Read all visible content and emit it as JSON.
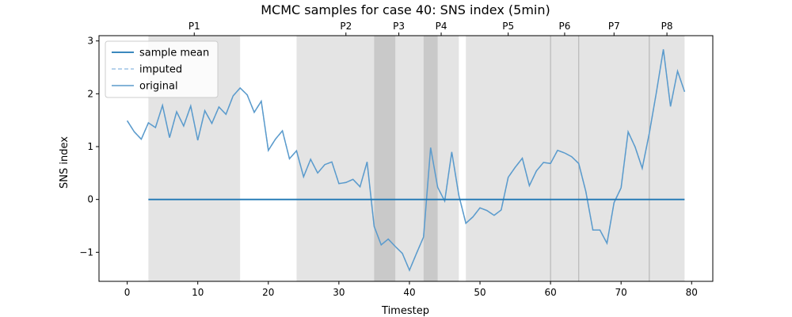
{
  "chart_data": {
    "type": "line",
    "title": "MCMC samples for case 40: SNS index (5min)",
    "xlabel": "Timestep",
    "ylabel": "SNS index",
    "xlim": [
      -4,
      83
    ],
    "ylim": [
      -1.55,
      3.1
    ],
    "xticks": [
      0,
      10,
      20,
      30,
      40,
      50,
      60,
      70,
      80
    ],
    "yticks": [
      -1,
      0,
      1,
      2,
      3
    ],
    "ytick_labels": [
      "−1",
      "0",
      "1",
      "2",
      "3"
    ],
    "legend_position": "upper-left",
    "legend": [
      "sample mean",
      "imputed",
      "original"
    ],
    "colors": {
      "sample_mean": "#1f77b4",
      "imputed": "#9ec3e6",
      "original": "#5b9bcc",
      "period_band": "#e4e4e4",
      "overlap_band": "#c9c9c9",
      "boundary_line": "#b0b0b0"
    },
    "periods": [
      {
        "label": "P1",
        "start": 3,
        "end": 16
      },
      {
        "label": "P2",
        "start": 24,
        "end": 38
      },
      {
        "label": "P3",
        "start": 35,
        "end": 42
      },
      {
        "label": "P4",
        "start": 42,
        "end": 47
      },
      {
        "label": "P5",
        "start": 48,
        "end": 60
      },
      {
        "label": "P6",
        "start": 60,
        "end": 64
      },
      {
        "label": "P7",
        "start": 64,
        "end": 74
      },
      {
        "label": "P8",
        "start": 74,
        "end": 79
      }
    ],
    "overlaps": [
      {
        "start": 35,
        "end": 38
      },
      {
        "start": 42,
        "end": 44
      }
    ],
    "boundaries": [
      60,
      64,
      74
    ],
    "sample_mean": {
      "x": [
        3,
        79
      ],
      "y": [
        0,
        0
      ]
    },
    "series": [
      {
        "name": "original",
        "x": [
          0,
          1,
          2,
          3,
          4,
          5,
          6,
          7,
          8,
          9,
          10,
          11,
          12,
          13,
          14,
          15,
          16,
          17,
          18,
          19,
          20,
          21,
          22,
          23,
          24,
          25,
          26,
          27,
          28,
          29,
          30,
          31,
          32,
          33,
          34,
          35,
          36,
          37,
          38,
          39,
          40,
          41,
          42,
          43,
          44,
          45,
          46,
          47,
          48,
          49,
          50,
          51,
          52,
          53,
          54,
          55,
          56,
          57,
          58,
          59,
          60,
          61,
          62,
          63,
          64,
          65,
          66,
          67,
          68,
          69,
          70,
          71,
          72,
          73,
          74,
          75,
          76,
          77,
          78,
          79
        ],
        "y": [
          1.49,
          1.28,
          1.14,
          1.45,
          1.36,
          1.78,
          1.17,
          1.66,
          1.39,
          1.77,
          1.12,
          1.68,
          1.44,
          1.75,
          1.61,
          1.96,
          2.11,
          1.98,
          1.65,
          1.86,
          0.93,
          1.14,
          1.3,
          0.77,
          0.92,
          0.43,
          0.76,
          0.5,
          0.66,
          0.71,
          0.3,
          0.32,
          0.38,
          0.24,
          0.71,
          -0.51,
          -0.86,
          -0.75,
          -0.89,
          -1.02,
          -1.34,
          -1.02,
          -0.71,
          0.98,
          0.23,
          -0.03,
          0.9,
          0.08,
          -0.45,
          -0.33,
          -0.16,
          -0.21,
          -0.3,
          -0.2,
          0.42,
          0.61,
          0.78,
          0.26,
          0.54,
          0.7,
          0.68,
          0.93,
          0.88,
          0.81,
          0.68,
          0.15,
          -0.58,
          -0.58,
          -0.83,
          -0.06,
          0.22,
          1.28,
          0.99,
          0.59,
          1.25,
          2.02,
          2.84,
          1.76,
          2.43,
          2.04
        ]
      }
    ]
  }
}
